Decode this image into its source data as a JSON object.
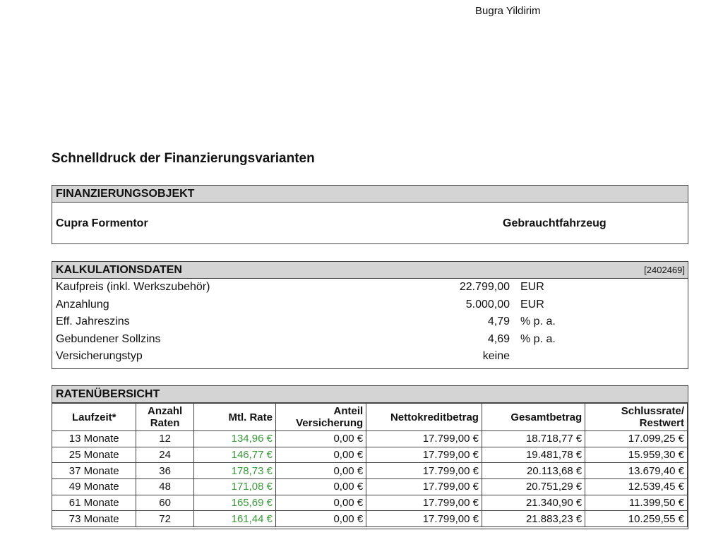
{
  "header": {
    "name": "Bugra Yildirim"
  },
  "title": "Schnelldruck der Finanzierungsvarianten",
  "objekt": {
    "heading": "FINANZIERUNGSOBJEKT",
    "model": "Cupra Formentor",
    "type": "Gebrauchtfahrzeug"
  },
  "kalkulation": {
    "heading": "KALKULATIONSDATEN",
    "ref": "[2402469]",
    "rows": [
      {
        "label": "Kaufpreis (inkl. Werkszubehör)",
        "value": "22.799,00",
        "unit": "EUR"
      },
      {
        "label": "Anzahlung",
        "value": "5.000,00",
        "unit": "EUR"
      },
      {
        "label": "Eff. Jahreszins",
        "value": "4,79",
        "unit": "% p. a."
      },
      {
        "label": "Gebundener Sollzins",
        "value": "4,69",
        "unit": "% p. a."
      },
      {
        "label": "Versicherungstyp",
        "value": "keine",
        "unit": ""
      }
    ]
  },
  "raten": {
    "heading": "RATENÜBERSICHT",
    "columns": [
      "Laufzeit*",
      "Anzahl Raten",
      "Mtl. Rate",
      "Anteil Versicherung",
      "Nettokreditbetrag",
      "Gesamtbetrag",
      "Schlussrate/ Restwert"
    ],
    "rows": [
      [
        "13 Monate",
        "12",
        "134,96 €",
        "0,00 €",
        "17.799,00 €",
        "18.718,77 €",
        "17.099,25 €"
      ],
      [
        "25 Monate",
        "24",
        "146,77 €",
        "0,00 €",
        "17.799,00 €",
        "19.481,78 €",
        "15.959,30 €"
      ],
      [
        "37 Monate",
        "36",
        "178,73 €",
        "0,00 €",
        "17.799,00 €",
        "20.113,68 €",
        "13.679,40 €"
      ],
      [
        "49 Monate",
        "48",
        "171,08 €",
        "0,00 €",
        "17.799,00 €",
        "20.751,29 €",
        "12.539,45 €"
      ],
      [
        "61 Monate",
        "60",
        "165,69 €",
        "0,00 €",
        "17.799,00 €",
        "21.340,90 €",
        "11.399,50 €"
      ],
      [
        "73 Monate",
        "72",
        "161,44 €",
        "0,00 €",
        "17.799,00 €",
        "21.883,23 €",
        "10.259,55 €"
      ]
    ],
    "rate_color": "#3a9a3a"
  }
}
